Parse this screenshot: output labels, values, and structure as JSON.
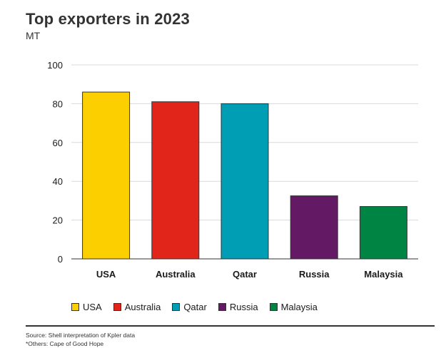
{
  "header": {
    "title": "Top exporters in 2023",
    "subtitle": "MT"
  },
  "footer": {
    "source": "Source: Shell interpretation of Kpler data",
    "note": "*Others: Cape of Good Hope"
  },
  "chart_data": {
    "type": "bar",
    "title": "Top exporters in 2023",
    "subtitle": "MT",
    "xlabel": "",
    "ylabel": "",
    "categories": [
      "USA",
      "Australia",
      "Qatar",
      "Russia",
      "Malaysia"
    ],
    "values": [
      86,
      81,
      80,
      32.5,
      27
    ],
    "colors": [
      "#fccf00",
      "#e1251b",
      "#009eb4",
      "#641964",
      "#008443"
    ],
    "ylim": [
      0,
      100
    ],
    "yticks": [
      "0",
      "20",
      "40",
      "60",
      "80",
      "100"
    ],
    "grid": true,
    "legend": {
      "position": "bottom",
      "entries": [
        "USA",
        "Australia",
        "Qatar",
        "Russia",
        "Malaysia"
      ]
    }
  }
}
